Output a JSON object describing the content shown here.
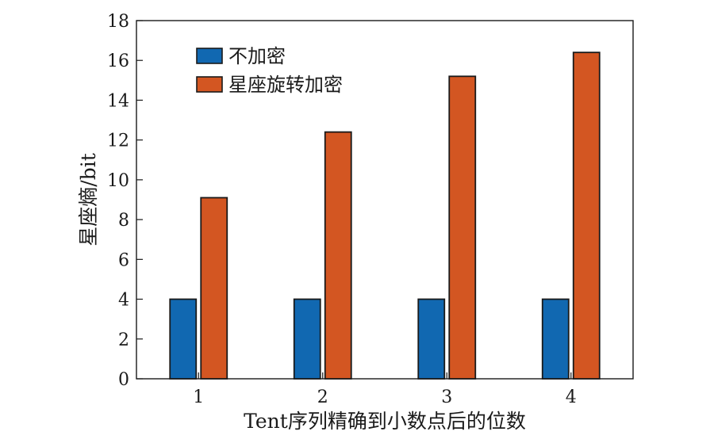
{
  "chart_data": {
    "type": "bar",
    "categories": [
      "1",
      "2",
      "3",
      "4"
    ],
    "series": [
      {
        "name": "不加密",
        "values": [
          4,
          4,
          4,
          4
        ],
        "color": "#1168b1"
      },
      {
        "name": "星座旋转加密",
        "values": [
          9.1,
          12.4,
          15.2,
          16.4
        ],
        "color": "#d35622"
      }
    ],
    "xlabel": "Tent序列精确到小数点后的位数",
    "ylabel": "星座熵/bit",
    "ylim": [
      0,
      18
    ],
    "yticks": [
      0,
      2,
      4,
      6,
      8,
      10,
      12,
      14,
      16,
      18
    ],
    "legend_position": "top-left",
    "grid": false
  }
}
